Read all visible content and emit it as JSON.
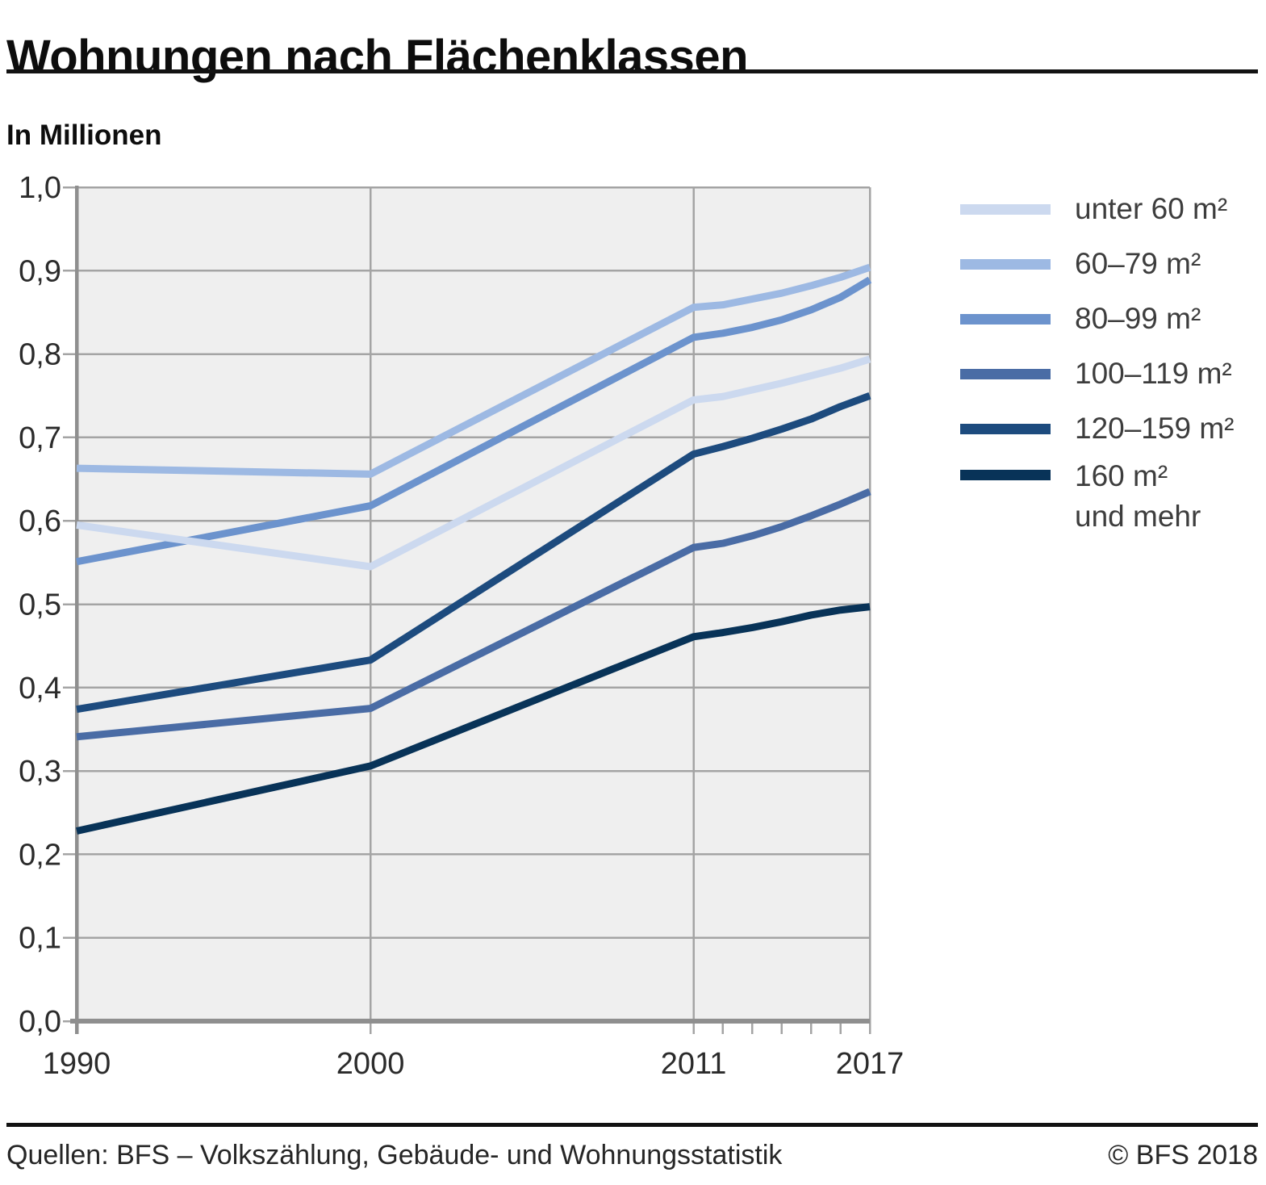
{
  "header": {
    "title": "Wohnungen nach Flächenklassen",
    "subtitle": "In Millionen"
  },
  "chart_data": {
    "type": "line",
    "title": "Wohnungen nach Flächenklassen",
    "ylabel": "In Millionen",
    "xlim": [
      1990,
      2017
    ],
    "ylim": [
      0,
      1
    ],
    "grid": true,
    "legend_position": "right",
    "x": [
      1990,
      2000,
      2011,
      2012,
      2013,
      2014,
      2015,
      2016,
      2017
    ],
    "x_ticks": [
      {
        "year": 1990,
        "label": "1990"
      },
      {
        "year": 2000,
        "label": "2000"
      },
      {
        "year": 2011,
        "label": "2011"
      },
      {
        "year": 2017,
        "label": "2017"
      }
    ],
    "x_minor_ticks": [
      2012,
      2013,
      2014,
      2015,
      2016
    ],
    "y_ticks": [
      {
        "value": 0,
        "label": "0,0"
      },
      {
        "value": 0.1,
        "label": "0,1"
      },
      {
        "value": 0.2,
        "label": "0,2"
      },
      {
        "value": 0.3,
        "label": "0,3"
      },
      {
        "value": 0.4,
        "label": "0,4"
      },
      {
        "value": 0.5,
        "label": "0,5"
      },
      {
        "value": 0.6,
        "label": "0,6"
      },
      {
        "value": 0.7,
        "label": "0,7"
      },
      {
        "value": 0.8,
        "label": "0,8"
      },
      {
        "value": 0.9,
        "label": "0,9"
      },
      {
        "value": 1,
        "label": "1,0"
      }
    ],
    "series": [
      {
        "name": "unter 60 m²",
        "color": "#ccd9ef",
        "values": [
          0.595,
          0.545,
          0.745,
          0.749,
          0.757,
          0.765,
          0.774,
          0.783,
          0.794
        ]
      },
      {
        "name": "60–79 m²",
        "color": "#9db9e3",
        "values": [
          0.663,
          0.656,
          0.856,
          0.859,
          0.866,
          0.873,
          0.882,
          0.892,
          0.904
        ]
      },
      {
        "name": "80–99 m²",
        "color": "#6c93cd",
        "values": [
          0.551,
          0.618,
          0.82,
          0.825,
          0.832,
          0.841,
          0.853,
          0.868,
          0.889
        ]
      },
      {
        "name": "100–119 m²",
        "color": "#4a6ca5",
        "values": [
          0.341,
          0.375,
          0.568,
          0.573,
          0.582,
          0.593,
          0.606,
          0.62,
          0.635
        ]
      },
      {
        "name": "120–159 m²",
        "color": "#1d4b7e",
        "values": [
          0.374,
          0.433,
          0.68,
          0.689,
          0.699,
          0.71,
          0.722,
          0.737,
          0.75
        ]
      },
      {
        "name": "160 m² und mehr",
        "color": "#083358",
        "values": [
          0.228,
          0.306,
          0.461,
          0.466,
          0.472,
          0.479,
          0.487,
          0.493,
          0.497
        ]
      }
    ]
  },
  "legend": {
    "items": [
      {
        "lines": [
          "unter 60 m²"
        ]
      },
      {
        "lines": [
          "60–79 m²"
        ]
      },
      {
        "lines": [
          "80–99 m²"
        ]
      },
      {
        "lines": [
          "100–119 m²"
        ]
      },
      {
        "lines": [
          "120–159 m²"
        ]
      },
      {
        "lines": [
          "160 m²",
          "und mehr"
        ]
      }
    ]
  },
  "footer": {
    "source": "Quellen: BFS – Volkszählung, Gebäude- und Wohnungsstatistik",
    "copyright": "© BFS 2018"
  },
  "style": {
    "plot_bg": "#efefef",
    "grid_color": "#a4a4a4",
    "axis_color": "#8f8f8f",
    "text_color": "#2b2b2b"
  }
}
